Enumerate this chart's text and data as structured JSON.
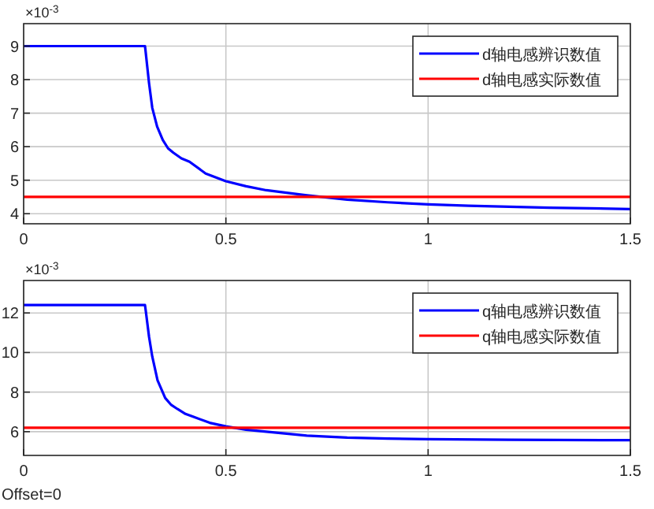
{
  "chart_data": [
    {
      "type": "line",
      "annotations": [
        "×10$^{-3}$"
      ],
      "xlim": [
        0,
        1.5
      ],
      "xticks": [
        0,
        0.5,
        1,
        1.5
      ],
      "ylim": [
        3.7,
        9.67
      ],
      "yticks": [
        4,
        5,
        6,
        7,
        8,
        9
      ],
      "grid": true,
      "legend": "top right",
      "series": [
        {
          "name": "d轴电感辨识数值",
          "color": "#0000ff",
          "x": [
            0,
            0.3,
            0.301,
            0.31,
            0.318,
            0.33,
            0.344,
            0.357,
            0.37,
            0.39,
            0.41,
            0.45,
            0.5,
            0.55,
            0.6,
            0.7,
            0.8,
            0.9,
            1.0,
            1.1,
            1.2,
            1.3,
            1.4,
            1.5
          ],
          "values": [
            9,
            9,
            8.9,
            7.9,
            7.16,
            6.6,
            6.2,
            5.95,
            5.82,
            5.65,
            5.55,
            5.2,
            4.97,
            4.82,
            4.7,
            4.55,
            4.42,
            4.34,
            4.28,
            4.24,
            4.21,
            4.18,
            4.16,
            4.14
          ]
        },
        {
          "name": "d轴电感实际数值",
          "color": "#ff0000",
          "x": [
            0,
            1.5
          ],
          "values": [
            4.5,
            4.5
          ]
        }
      ]
    },
    {
      "type": "line",
      "annotations": [
        "×10$^{-3}$",
        "Offset=0"
      ],
      "xlim": [
        0,
        1.5
      ],
      "xticks": [
        0,
        0.5,
        1,
        1.5
      ],
      "ylim": [
        4.8,
        13.64
      ],
      "yticks": [
        6,
        8,
        10,
        12
      ],
      "grid": true,
      "legend": "top right",
      "series": [
        {
          "name": "q轴电感辨识数值",
          "color": "#0000ff",
          "x": [
            0,
            0.3,
            0.302,
            0.31,
            0.318,
            0.331,
            0.35,
            0.365,
            0.38,
            0.4,
            0.42,
            0.46,
            0.5,
            0.55,
            0.6,
            0.7,
            0.8,
            0.9,
            1.0,
            1.2,
            1.5
          ],
          "values": [
            12.4,
            12.4,
            12.1,
            10.8,
            9.8,
            8.6,
            7.7,
            7.35,
            7.15,
            6.9,
            6.75,
            6.45,
            6.27,
            6.1,
            6.0,
            5.8,
            5.7,
            5.65,
            5.62,
            5.59,
            5.57
          ]
        },
        {
          "name": "q轴电感实际数值",
          "color": "#ff0000",
          "x": [
            0,
            1.5
          ],
          "values": [
            6.2,
            6.2
          ]
        }
      ]
    }
  ]
}
